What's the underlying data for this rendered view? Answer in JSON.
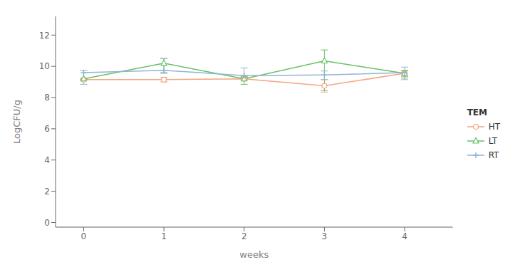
{
  "chart_data": {
    "type": "line",
    "x": [
      0,
      1,
      2,
      3,
      4
    ],
    "xlabel": "weeks",
    "ylabel": "LogCFU/g",
    "legend_title": "TEM",
    "legend": "right",
    "grid": false,
    "xlim": [
      -0.35,
      4.6
    ],
    "xticks": [
      0,
      1,
      2,
      3,
      4
    ],
    "ylim": [
      -0.3,
      13.2
    ],
    "yticks": [
      0,
      2,
      4,
      6,
      8,
      10,
      12
    ],
    "series": [
      {
        "name": "HT",
        "color": "#f4a582",
        "marker": "circle",
        "values": [
          9.15,
          9.15,
          9.2,
          8.75,
          9.55
        ],
        "err_low": [
          9.15,
          9.0,
          9.1,
          8.35,
          9.35
        ],
        "err_high": [
          9.15,
          9.3,
          9.3,
          9.15,
          9.7
        ]
      },
      {
        "name": "LT",
        "color": "#66c266",
        "marker": "triangle",
        "values": [
          9.2,
          10.2,
          9.2,
          10.35,
          9.55
        ],
        "err_low": [
          9.2,
          9.6,
          8.85,
          8.45,
          9.25
        ],
        "err_high": [
          9.2,
          10.5,
          9.35,
          11.05,
          9.75
        ]
      },
      {
        "name": "RT",
        "color": "#92b4d4",
        "marker": "plus",
        "values": [
          9.6,
          9.75,
          9.4,
          9.45,
          9.6
        ],
        "err_low": [
          8.85,
          9.55,
          9.3,
          9.15,
          9.15
        ],
        "err_high": [
          9.75,
          10.5,
          9.9,
          9.7,
          9.95
        ]
      }
    ]
  }
}
